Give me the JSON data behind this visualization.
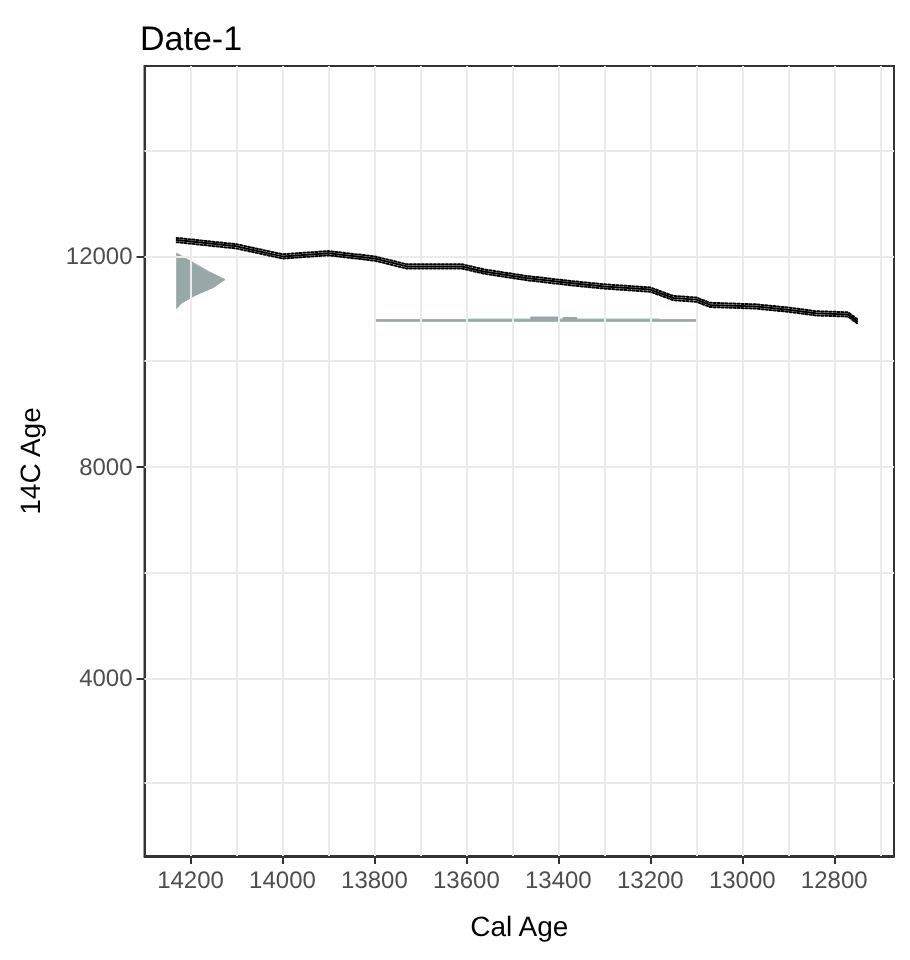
{
  "chart_data": {
    "type": "line",
    "title": "Date-1",
    "xlabel": "Cal Age",
    "ylabel": "14C Age",
    "xlim": [
      14300,
      12670
    ],
    "xticks": [
      {
        "value": 14200,
        "label": "14200"
      },
      {
        "value": 14100,
        "label": null
      },
      {
        "value": 14000,
        "label": "14000"
      },
      {
        "value": 13900,
        "label": null
      },
      {
        "value": 13800,
        "label": "13800"
      },
      {
        "value": 13700,
        "label": null
      },
      {
        "value": 13600,
        "label": "13600"
      },
      {
        "value": 13500,
        "label": null
      },
      {
        "value": 13400,
        "label": "13400"
      },
      {
        "value": 13300,
        "label": null
      },
      {
        "value": 13200,
        "label": "13200"
      },
      {
        "value": 13100,
        "label": null
      },
      {
        "value": 13000,
        "label": "13000"
      },
      {
        "value": 12900,
        "label": null
      },
      {
        "value": 12800,
        "label": "12800"
      },
      {
        "value": 12700,
        "label": null
      }
    ],
    "ylim": [
      620,
      15600
    ],
    "yticks": [
      {
        "value": 2000,
        "label": null
      },
      {
        "value": 4000,
        "label": "4000"
      },
      {
        "value": 6000,
        "label": null
      },
      {
        "value": 8000,
        "label": "8000"
      },
      {
        "value": 10000,
        "label": null
      },
      {
        "value": 12000,
        "label": "12000"
      },
      {
        "value": 14000,
        "label": null
      }
    ],
    "grid": true,
    "series": [
      {
        "color": "#000000",
        "line_style": "solid",
        "x": [
          14230,
          14100,
          14000,
          13900,
          13800,
          13730,
          13610,
          13560,
          13470,
          13370,
          13300,
          13200,
          13150,
          13100,
          13070,
          12970,
          12900,
          12840,
          12770,
          12750
        ],
        "values": [
          12300,
          12180,
          11990,
          12050,
          11950,
          11800,
          11800,
          11700,
          11580,
          11480,
          11420,
          11360,
          11200,
          11170,
          11070,
          11040,
          10980,
          10910,
          10890,
          10760
        ]
      },
      {
        "color": "#000000",
        "line_style": "dotted",
        "x": [
          14230,
          14100,
          14000,
          13900,
          13800,
          13730,
          13610,
          13560,
          13470,
          13370,
          13300,
          13200,
          13150,
          13100,
          13070,
          12970,
          12900,
          12840,
          12770,
          12750
        ],
        "values": [
          12340,
          12220,
          12030,
          12090,
          11990,
          11840,
          11840,
          11740,
          11620,
          11520,
          11460,
          11400,
          11240,
          11210,
          11110,
          11080,
          11020,
          10950,
          10930,
          10800
        ]
      },
      {
        "color": "#000000",
        "line_style": "dotted",
        "x": [
          14230,
          14100,
          14000,
          13900,
          13800,
          13730,
          13610,
          13560,
          13470,
          13370,
          13300,
          13200,
          13150,
          13100,
          13070,
          12970,
          12900,
          12840,
          12770,
          12750
        ],
        "values": [
          12260,
          12140,
          11950,
          12010,
          11910,
          11760,
          11760,
          11660,
          11540,
          11440,
          11380,
          11320,
          11160,
          11130,
          11030,
          11000,
          10940,
          10870,
          10850,
          10720
        ]
      },
      {
        "type": "area",
        "color": "#98a8a8",
        "x": [
          14230,
          14200,
          14160,
          14125,
          14150,
          14190,
          14220,
          14230
        ],
        "values": [
          12050,
          11900,
          11700,
          11550,
          11400,
          11250,
          11100,
          11000
        ]
      },
      {
        "type": "area",
        "color": "#98a8a8",
        "x": [
          13800,
          13800,
          13600,
          13600,
          13460,
          13460,
          13400,
          13400,
          13390,
          13390,
          13360,
          13360,
          13180,
          13180,
          13100,
          13100
        ],
        "values": [
          10760,
          10790,
          10790,
          10800,
          10800,
          10840,
          10840,
          10800,
          10800,
          10830,
          10830,
          10800,
          10800,
          10790,
          10790,
          10760
        ]
      }
    ]
  }
}
